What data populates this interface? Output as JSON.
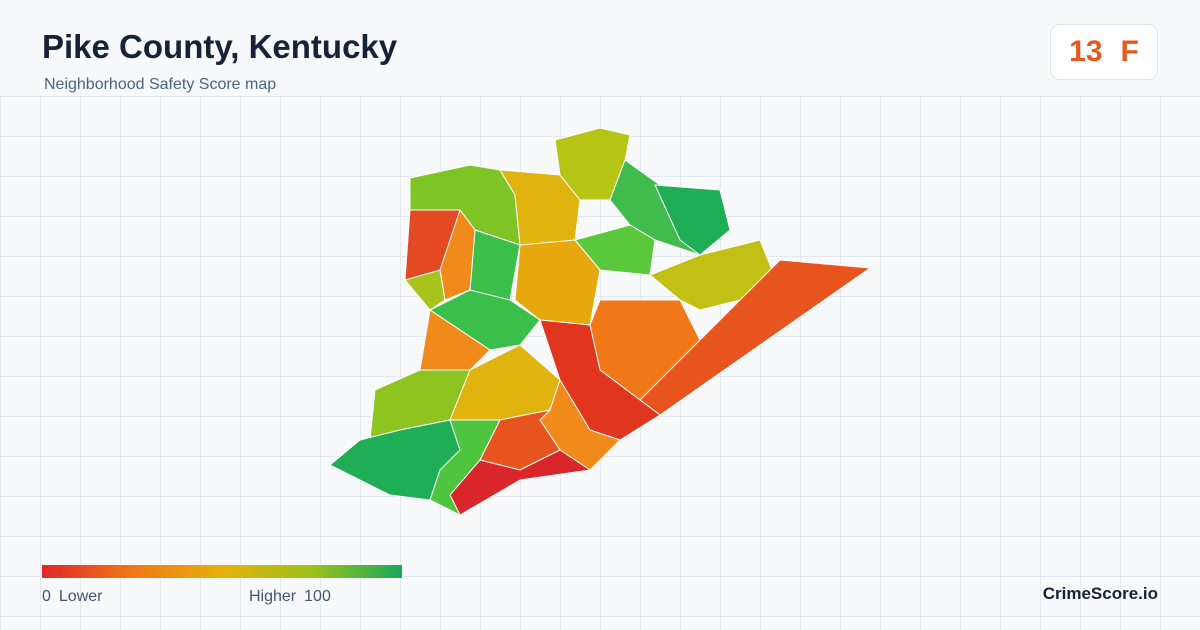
{
  "header": {
    "title": "Pike County, Kentucky",
    "subtitle": "Neighborhood Safety Score map"
  },
  "score": {
    "value": 13,
    "grade": "F"
  },
  "legend": {
    "min": 0,
    "min_label": "Lower",
    "max_label": "Higher",
    "max": 100
  },
  "brand": "CrimeScore.io"
}
